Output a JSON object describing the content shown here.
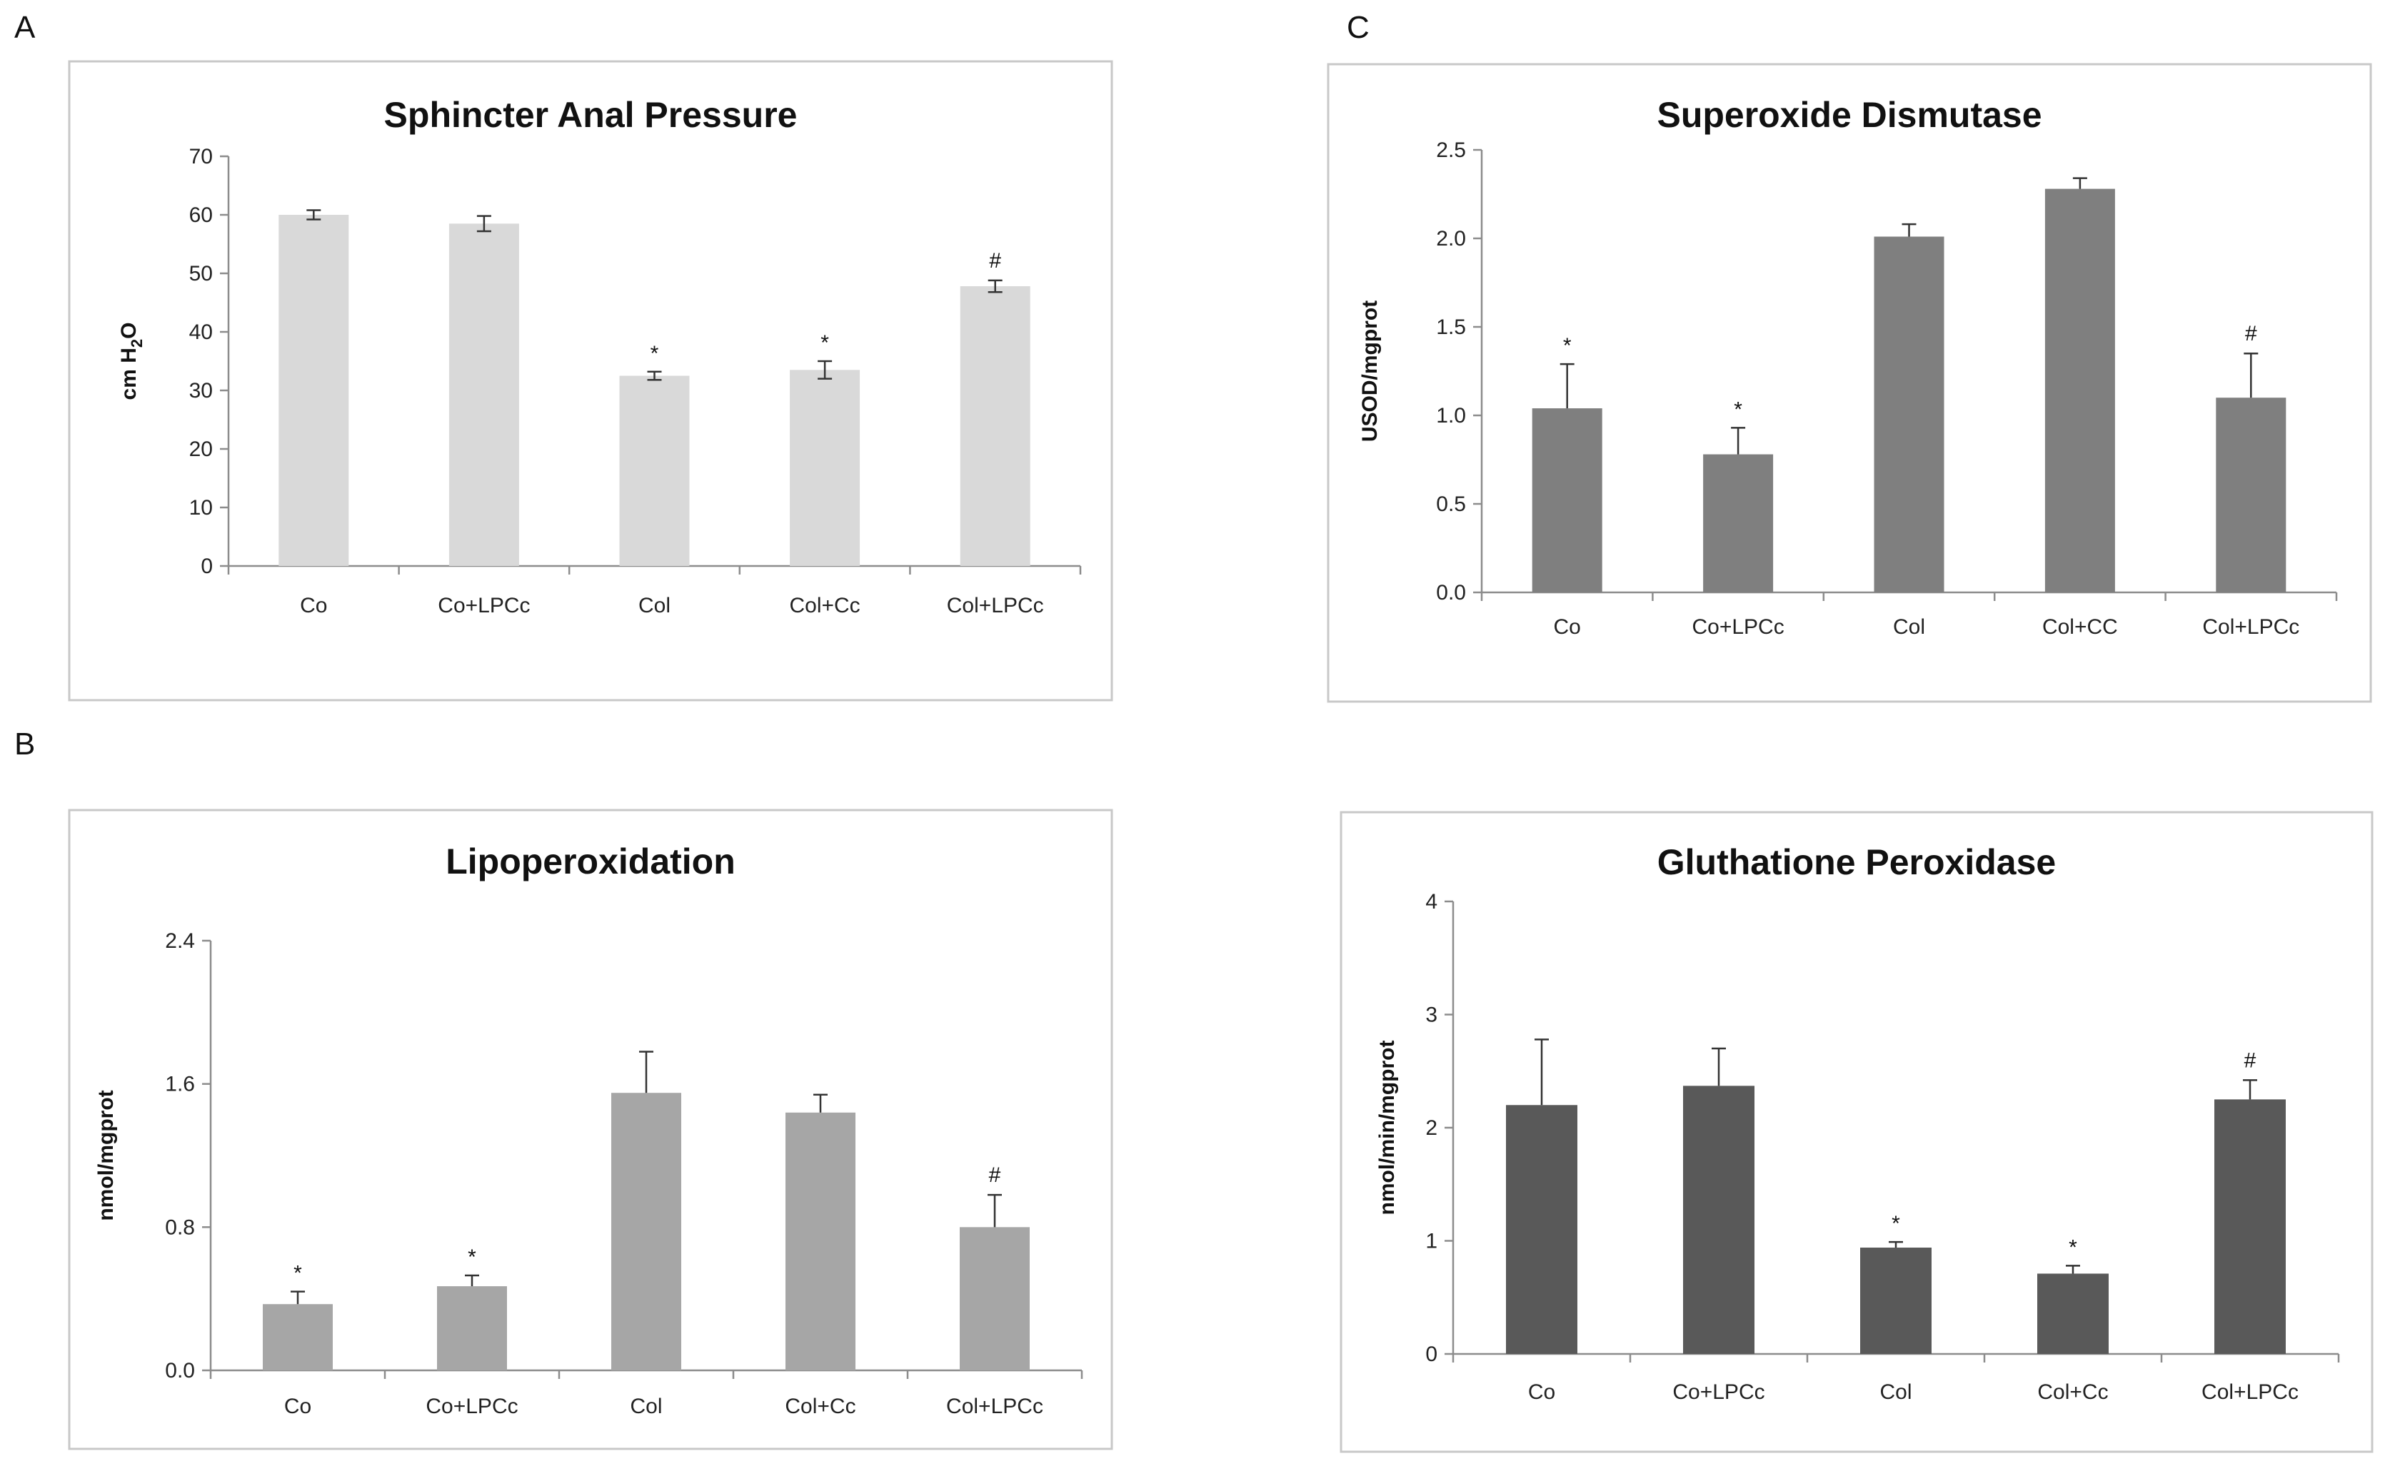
{
  "panel_letters": [
    "A",
    "B",
    "C"
  ],
  "chart_data": [
    {
      "type": "bar",
      "title": "Sphincter Anal Pressure",
      "ylabel": "cm H2O",
      "ylabel_main": "cm H",
      "ylabel_sub": "2",
      "ylabel_tail": "O",
      "ylim": [
        0,
        70
      ],
      "ticks": [
        0,
        10,
        20,
        30,
        40,
        50,
        60,
        70
      ],
      "tick_labels": [
        "0",
        "10",
        "20",
        "30",
        "40",
        "50",
        "60",
        "70"
      ],
      "categories": [
        "Co",
        "Co+LPCc",
        "Col",
        "Col+Cc",
        "Col+LPCc"
      ],
      "values": [
        60,
        58.5,
        32.5,
        33.5,
        47.8
      ],
      "errors": [
        0.8,
        1.3,
        0.7,
        1.5,
        1.0
      ],
      "error_style": "both",
      "significance": [
        "",
        "",
        "*",
        "*",
        "#"
      ],
      "bar_color": "#d9d9d9"
    },
    {
      "type": "bar",
      "title": "Lipoperoxidation",
      "ylabel": "nmol/mgprot",
      "ylim": [
        0,
        2.4
      ],
      "ticks": [
        0,
        0.8,
        1.6,
        2.4
      ],
      "tick_labels": [
        "0.0",
        "0.8",
        "1.6",
        "2.4"
      ],
      "categories": [
        "Co",
        "Co+LPCc",
        "Col",
        "Col+Cc",
        "Col+LPCc"
      ],
      "values": [
        0.37,
        0.47,
        1.55,
        1.44,
        0.8
      ],
      "errors": [
        0.07,
        0.06,
        0.23,
        0.1,
        0.18
      ],
      "error_style": "upper",
      "significance": [
        "*",
        "*",
        "",
        "",
        "#"
      ],
      "bar_color": "#a6a6a6"
    },
    {
      "type": "bar",
      "title": "Superoxide Dismutase",
      "ylabel": "USOD/mgprot",
      "ylim": [
        0,
        2.5
      ],
      "ticks": [
        0,
        0.5,
        1.0,
        1.5,
        2.0,
        2.5
      ],
      "tick_labels": [
        "0.0",
        "0.5",
        "1.0",
        "1.5",
        "2.0",
        "2.5"
      ],
      "categories": [
        "Co",
        "Co+LPCc",
        "Col",
        "Col+CC",
        "Col+LPCc"
      ],
      "values": [
        1.04,
        0.78,
        2.01,
        2.28,
        1.1
      ],
      "errors": [
        0.25,
        0.15,
        0.07,
        0.06,
        0.25
      ],
      "error_style": "upper",
      "significance": [
        "*",
        "*",
        "",
        "",
        "#"
      ],
      "bar_color": "#7f7f7f"
    },
    {
      "type": "bar",
      "title": "Gluthatione Peroxidase",
      "ylabel": "nmol/min/mgprot",
      "ylim": [
        0,
        4
      ],
      "ticks": [
        0,
        1,
        2,
        3,
        4
      ],
      "tick_labels": [
        "0",
        "1",
        "2",
        "3",
        "4"
      ],
      "categories": [
        "Co",
        "Co+LPCc",
        "Col",
        "Col+Cc",
        "Col+LPCc"
      ],
      "values": [
        2.2,
        2.37,
        0.94,
        0.71,
        2.25
      ],
      "errors": [
        0.58,
        0.33,
        0.05,
        0.07,
        0.17
      ],
      "error_style": "upper",
      "significance": [
        "",
        "",
        "*",
        "*",
        "#"
      ],
      "bar_color": "#595959"
    }
  ]
}
